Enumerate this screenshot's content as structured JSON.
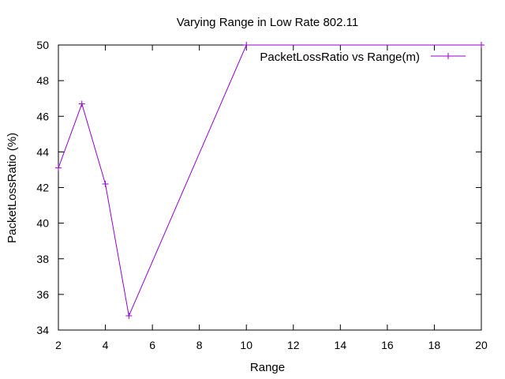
{
  "chart_data": {
    "type": "line",
    "title": "Varying Range in Low Rate 802.11",
    "xlabel": "Range",
    "ylabel": "PacketLossRatio (%)",
    "xlim": [
      2,
      20
    ],
    "ylim": [
      34,
      50
    ],
    "x_ticks": [
      2,
      4,
      6,
      8,
      10,
      12,
      14,
      16,
      18,
      20
    ],
    "y_ticks": [
      34,
      36,
      38,
      40,
      42,
      44,
      46,
      48,
      50
    ],
    "grid": false,
    "legend_position": "top-right",
    "series": [
      {
        "name": "PacketLossRatio vs Range(m)",
        "color": "#9400d3",
        "marker": "plus",
        "x": [
          2,
          3,
          4,
          5,
          10,
          20
        ],
        "y": [
          43.1,
          46.7,
          42.2,
          34.8,
          50.0,
          50.0
        ]
      }
    ]
  }
}
